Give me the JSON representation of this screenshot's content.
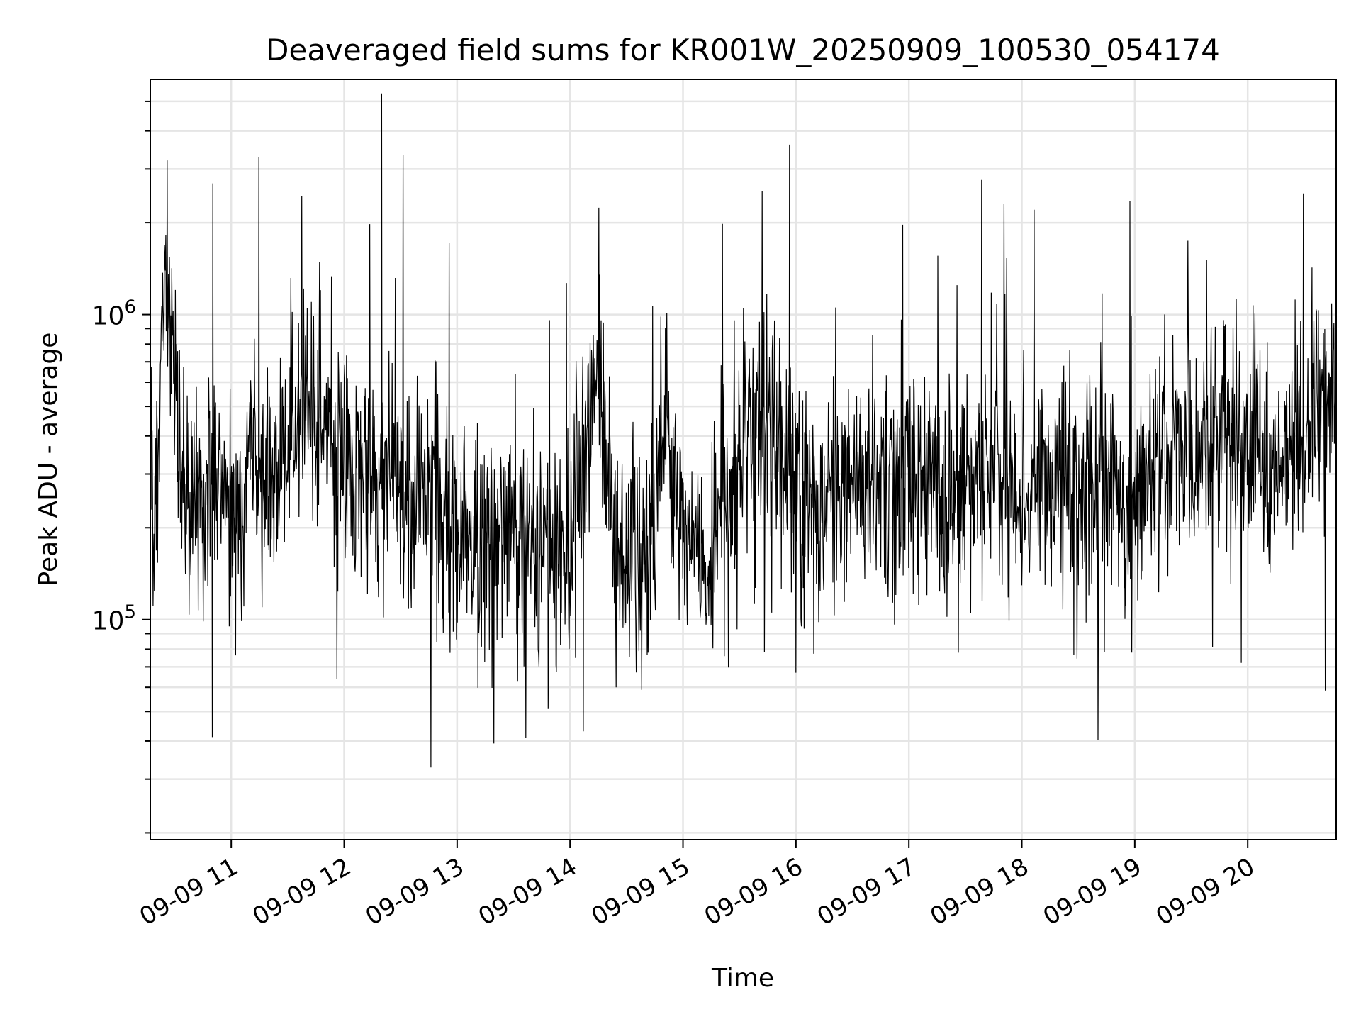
{
  "chart_data": {
    "type": "line",
    "title": "Deaveraged field sums for KR001W_20250909_100530_054174",
    "xlabel": "Time",
    "ylabel": "Peak ADU - average",
    "yscale": "log",
    "ylim": [
      19000,
      5900000
    ],
    "xlim": [
      "2025-09-09 10:17",
      "2025-09-09 20:47"
    ],
    "grid": true,
    "line_color": "#000000",
    "grid_color": "#e5e5e5",
    "x_ticks": [
      {
        "label": "09-09 11",
        "value": "2025-09-09 11:00"
      },
      {
        "label": "09-09 12",
        "value": "2025-09-09 12:00"
      },
      {
        "label": "09-09 13",
        "value": "2025-09-09 13:00"
      },
      {
        "label": "09-09 14",
        "value": "2025-09-09 14:00"
      },
      {
        "label": "09-09 15",
        "value": "2025-09-09 15:00"
      },
      {
        "label": "09-09 16",
        "value": "2025-09-09 16:00"
      },
      {
        "label": "09-09 17",
        "value": "2025-09-09 17:00"
      },
      {
        "label": "09-09 18",
        "value": "2025-09-09 18:00"
      },
      {
        "label": "09-09 19",
        "value": "2025-09-09 19:00"
      },
      {
        "label": "09-09 20",
        "value": "2025-09-09 20:00"
      }
    ],
    "y_ticks": [
      {
        "value": 100000,
        "base": "10",
        "exp": "5"
      },
      {
        "value": 1000000,
        "base": "10",
        "exp": "6"
      }
    ],
    "series": [
      {
        "x": [
          "2025-09-09 10:17",
          "2025-09-09 10:20",
          "2025-09-09 10:24",
          "2025-09-09 10:27",
          "2025-09-09 10:30",
          "2025-09-09 10:33",
          "2025-09-09 10:37",
          "2025-09-09 10:40",
          "2025-09-09 10:44",
          "2025-09-09 10:47",
          "2025-09-09 10:50",
          "2025-09-09 10:55",
          "2025-09-09 11:00",
          "2025-09-09 11:05",
          "2025-09-09 11:10",
          "2025-09-09 11:15",
          "2025-09-09 11:20",
          "2025-09-09 11:25",
          "2025-09-09 11:30",
          "2025-09-09 11:35",
          "2025-09-09 11:40",
          "2025-09-09 11:45",
          "2025-09-09 11:50",
          "2025-09-09 11:55",
          "2025-09-09 12:00",
          "2025-09-09 12:10",
          "2025-09-09 12:20",
          "2025-09-09 12:30",
          "2025-09-09 12:40",
          "2025-09-09 12:50",
          "2025-09-09 13:00",
          "2025-09-09 13:10",
          "2025-09-09 13:20",
          "2025-09-09 13:30",
          "2025-09-09 13:40",
          "2025-09-09 13:50",
          "2025-09-09 14:00",
          "2025-09-09 14:07",
          "2025-09-09 14:15",
          "2025-09-09 14:25",
          "2025-09-09 14:35",
          "2025-09-09 14:45",
          "2025-09-09 14:50",
          "2025-09-09 15:00",
          "2025-09-09 15:05",
          "2025-09-09 15:10",
          "2025-09-09 15:15",
          "2025-09-09 15:20",
          "2025-09-09 15:25",
          "2025-09-09 15:30",
          "2025-09-09 15:40",
          "2025-09-09 15:50",
          "2025-09-09 16:00",
          "2025-09-09 16:10",
          "2025-09-09 16:20",
          "2025-09-09 16:30",
          "2025-09-09 16:40",
          "2025-09-09 16:50",
          "2025-09-09 17:00",
          "2025-09-09 17:10",
          "2025-09-09 17:20",
          "2025-09-09 17:30",
          "2025-09-09 17:40",
          "2025-09-09 17:50",
          "2025-09-09 18:00",
          "2025-09-09 18:10",
          "2025-09-09 18:20",
          "2025-09-09 18:30",
          "2025-09-09 18:40",
          "2025-09-09 18:50",
          "2025-09-09 19:00",
          "2025-09-09 19:10",
          "2025-09-09 19:20",
          "2025-09-09 19:30",
          "2025-09-09 19:40",
          "2025-09-09 19:50",
          "2025-09-09 20:00",
          "2025-09-09 20:10",
          "2025-09-09 20:20",
          "2025-09-09 20:30",
          "2025-09-09 20:40",
          "2025-09-09 20:47"
        ],
        "values": [
          300000,
          250000,
          1200000,
          1000000,
          650000,
          350000,
          220000,
          250000,
          230000,
          260000,
          280000,
          260000,
          250000,
          270000,
          300000,
          290000,
          280000,
          330000,
          350000,
          420000,
          600000,
          450000,
          400000,
          350000,
          330000,
          330000,
          300000,
          260000,
          280000,
          230000,
          190000,
          180000,
          190000,
          200000,
          200000,
          170000,
          160000,
          330000,
          600000,
          170000,
          150000,
          200000,
          500000,
          200000,
          220000,
          170000,
          130000,
          280000,
          200000,
          300000,
          450000,
          300000,
          260000,
          230000,
          250000,
          270000,
          280000,
          300000,
          300000,
          270000,
          250000,
          280000,
          320000,
          310000,
          260000,
          300000,
          300000,
          280000,
          300000,
          250000,
          250000,
          300000,
          350000,
          380000,
          400000,
          450000,
          380000,
          280000,
          330000,
          420000,
          500000,
          560000
        ]
      }
    ]
  }
}
